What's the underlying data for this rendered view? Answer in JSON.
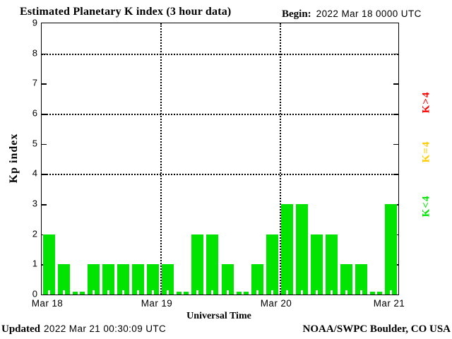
{
  "header": {
    "title": "Estimated Planetary K index (3 hour data)",
    "begin_label": "Begin:",
    "begin_value": "2022 Mar 18 0000 UTC"
  },
  "chart_data": {
    "type": "bar",
    "title": "Estimated Planetary K index (3 hour data)",
    "xlabel": "Universal Time",
    "ylabel": "Kp index",
    "ylim": [
      0,
      9
    ],
    "yticks": [
      0,
      1,
      2,
      3,
      4,
      5,
      6,
      7,
      8,
      9
    ],
    "grid_y": [
      4,
      6,
      8
    ],
    "interval_hours": 3,
    "begin": "2022 Mar 18 0000 UTC",
    "day_labels": [
      "Mar 18",
      "Mar 19",
      "Mar 20",
      "Mar 21"
    ],
    "bar_color": "#00e400",
    "series": [
      {
        "name": "Kp",
        "values": [
          2,
          1,
          0,
          1,
          1,
          1,
          1,
          1,
          1,
          0,
          2,
          2,
          1,
          0,
          1,
          2,
          3,
          3,
          2,
          2,
          1,
          1,
          0,
          3
        ]
      }
    ]
  },
  "legend": {
    "items": [
      {
        "name": "k-gt-4",
        "label": "K>4",
        "color": "#ff0000"
      },
      {
        "name": "k-eq-4",
        "label": "K=4",
        "color": "#ffcc00"
      },
      {
        "name": "k-lt-4",
        "label": "K<4",
        "color": "#00e400"
      }
    ]
  },
  "footer": {
    "updated_label": "Updated",
    "updated_value": "2022 Mar 21 00:30:09 UTC",
    "credit": "NOAA/SWPC Boulder, CO USA"
  }
}
